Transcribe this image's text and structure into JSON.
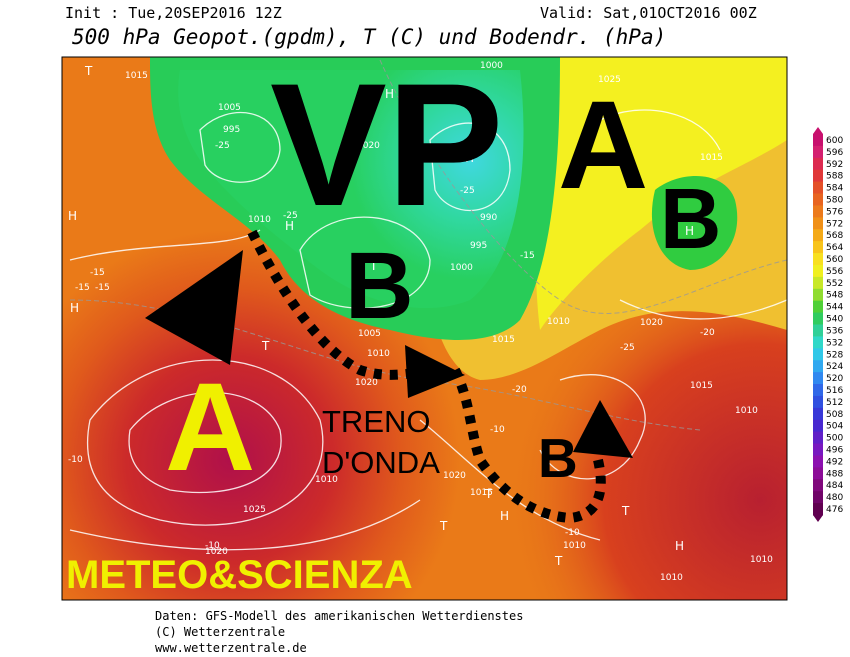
{
  "header": {
    "init": "Init : Tue,20SEP2016 12Z",
    "valid": "Valid: Sat,01OCT2016 00Z",
    "title": "500 hPa Geopot.(gpdm), T (C) und Bodendr. (hPa)"
  },
  "map": {
    "annotations": {
      "vp": "VP",
      "a_north": "A",
      "b_east": "B",
      "b_centre": "B",
      "a_west": "A",
      "b_south": "B",
      "treno": "TRENO",
      "donda": "D'ONDA",
      "watermark": "METEO&SCIENZA"
    },
    "pressure_labels": [
      "1015",
      "1005",
      "995",
      "1020",
      "1000",
      "990",
      "995",
      "1000",
      "1025",
      "1015",
      "1010",
      "1005",
      "1010",
      "1020",
      "1015",
      "1020",
      "1010",
      "1020",
      "1015",
      "1010",
      "1015",
      "1010",
      "1025",
      "1020",
      "1010",
      "1010",
      "1010"
    ],
    "temperature_labels": [
      "-25",
      "-25",
      "-25",
      "-15",
      "-15",
      "-20",
      "-25",
      "-20",
      "-15",
      "-15",
      "-10",
      "-10",
      "-10",
      "-10"
    ],
    "centre_labels": [
      "T",
      "H",
      "T",
      "H",
      "H",
      "H",
      "T",
      "H",
      "T",
      "H",
      "T",
      "H",
      "T",
      "H",
      "T"
    ]
  },
  "colorbar": {
    "labels": [
      "600",
      "596",
      "592",
      "588",
      "584",
      "580",
      "576",
      "572",
      "568",
      "564",
      "560",
      "556",
      "552",
      "548",
      "544",
      "540",
      "536",
      "532",
      "528",
      "524",
      "520",
      "516",
      "512",
      "508",
      "504",
      "500",
      "496",
      "492",
      "488",
      "484",
      "480",
      "476"
    ],
    "colors": [
      "#c8106e",
      "#d42070",
      "#dc2a50",
      "#e03838",
      "#e45028",
      "#e86420",
      "#ec7a1c",
      "#f09018",
      "#f4aa18",
      "#f8c41c",
      "#f8e020",
      "#f0f020",
      "#c8e828",
      "#90dc30",
      "#50d038",
      "#30cc60",
      "#30d098",
      "#30d8c8",
      "#30c8e8",
      "#30a8f0",
      "#3088f0",
      "#3068e8",
      "#3050e0",
      "#3838d8",
      "#4828d0",
      "#6020c8",
      "#7818c0",
      "#8c10b0",
      "#8c0c98",
      "#80087c",
      "#700468",
      "#600050"
    ]
  },
  "footer": {
    "lines": [
      "Daten: GFS-Modell des amerikanischen Wetterdienstes",
      "(C) Wetterzentrale",
      "www.wetterzentrale.de"
    ]
  }
}
